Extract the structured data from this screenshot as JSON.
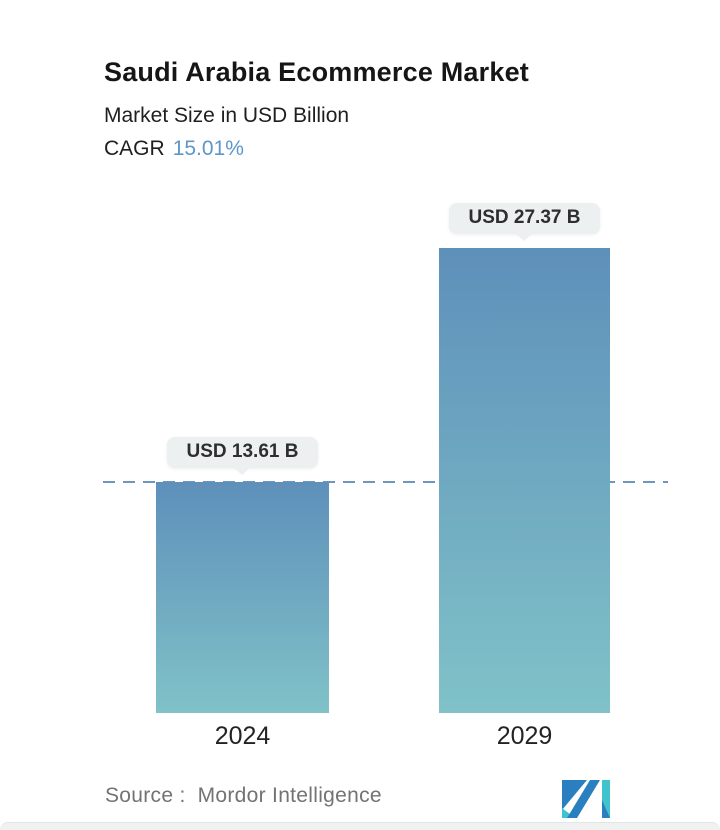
{
  "header": {
    "title": "Saudi Arabia Ecommerce Market",
    "subtitle": "Market Size in USD Billion",
    "cagr_label": "CAGR",
    "cagr_value": "15.01%"
  },
  "chart_data": {
    "type": "bar",
    "title": "Saudi Arabia Ecommerce Market",
    "ylabel": "Market Size in USD Billion",
    "unit": "USD Billion",
    "categories": [
      "2024",
      "2029"
    ],
    "values": [
      13.61,
      27.37
    ],
    "value_labels": [
      "USD 13.61 B",
      "USD 27.37 B"
    ],
    "cagr_percent": 15.01,
    "baseline": {
      "at_value": 13.61,
      "style": "dashed"
    },
    "legend": false,
    "gridlines": false
  },
  "footer": {
    "source_label": "Source :",
    "source_value": "Mordor Intelligence"
  },
  "colors": {
    "accent_blue": "#5d96c8",
    "bar_gradient_top": "#5e90ba",
    "bar_gradient_bottom": "#80c2c8",
    "dashed_line": "#6e97c0",
    "tooltip_bg": "#ecf0f0",
    "title_text": "#161616",
    "source_text": "#737373",
    "logo_blue": "#2a7fc0",
    "logo_teal": "#3fc3cd"
  },
  "icons": {
    "logo_name": "mordor-intelligence-logo"
  }
}
